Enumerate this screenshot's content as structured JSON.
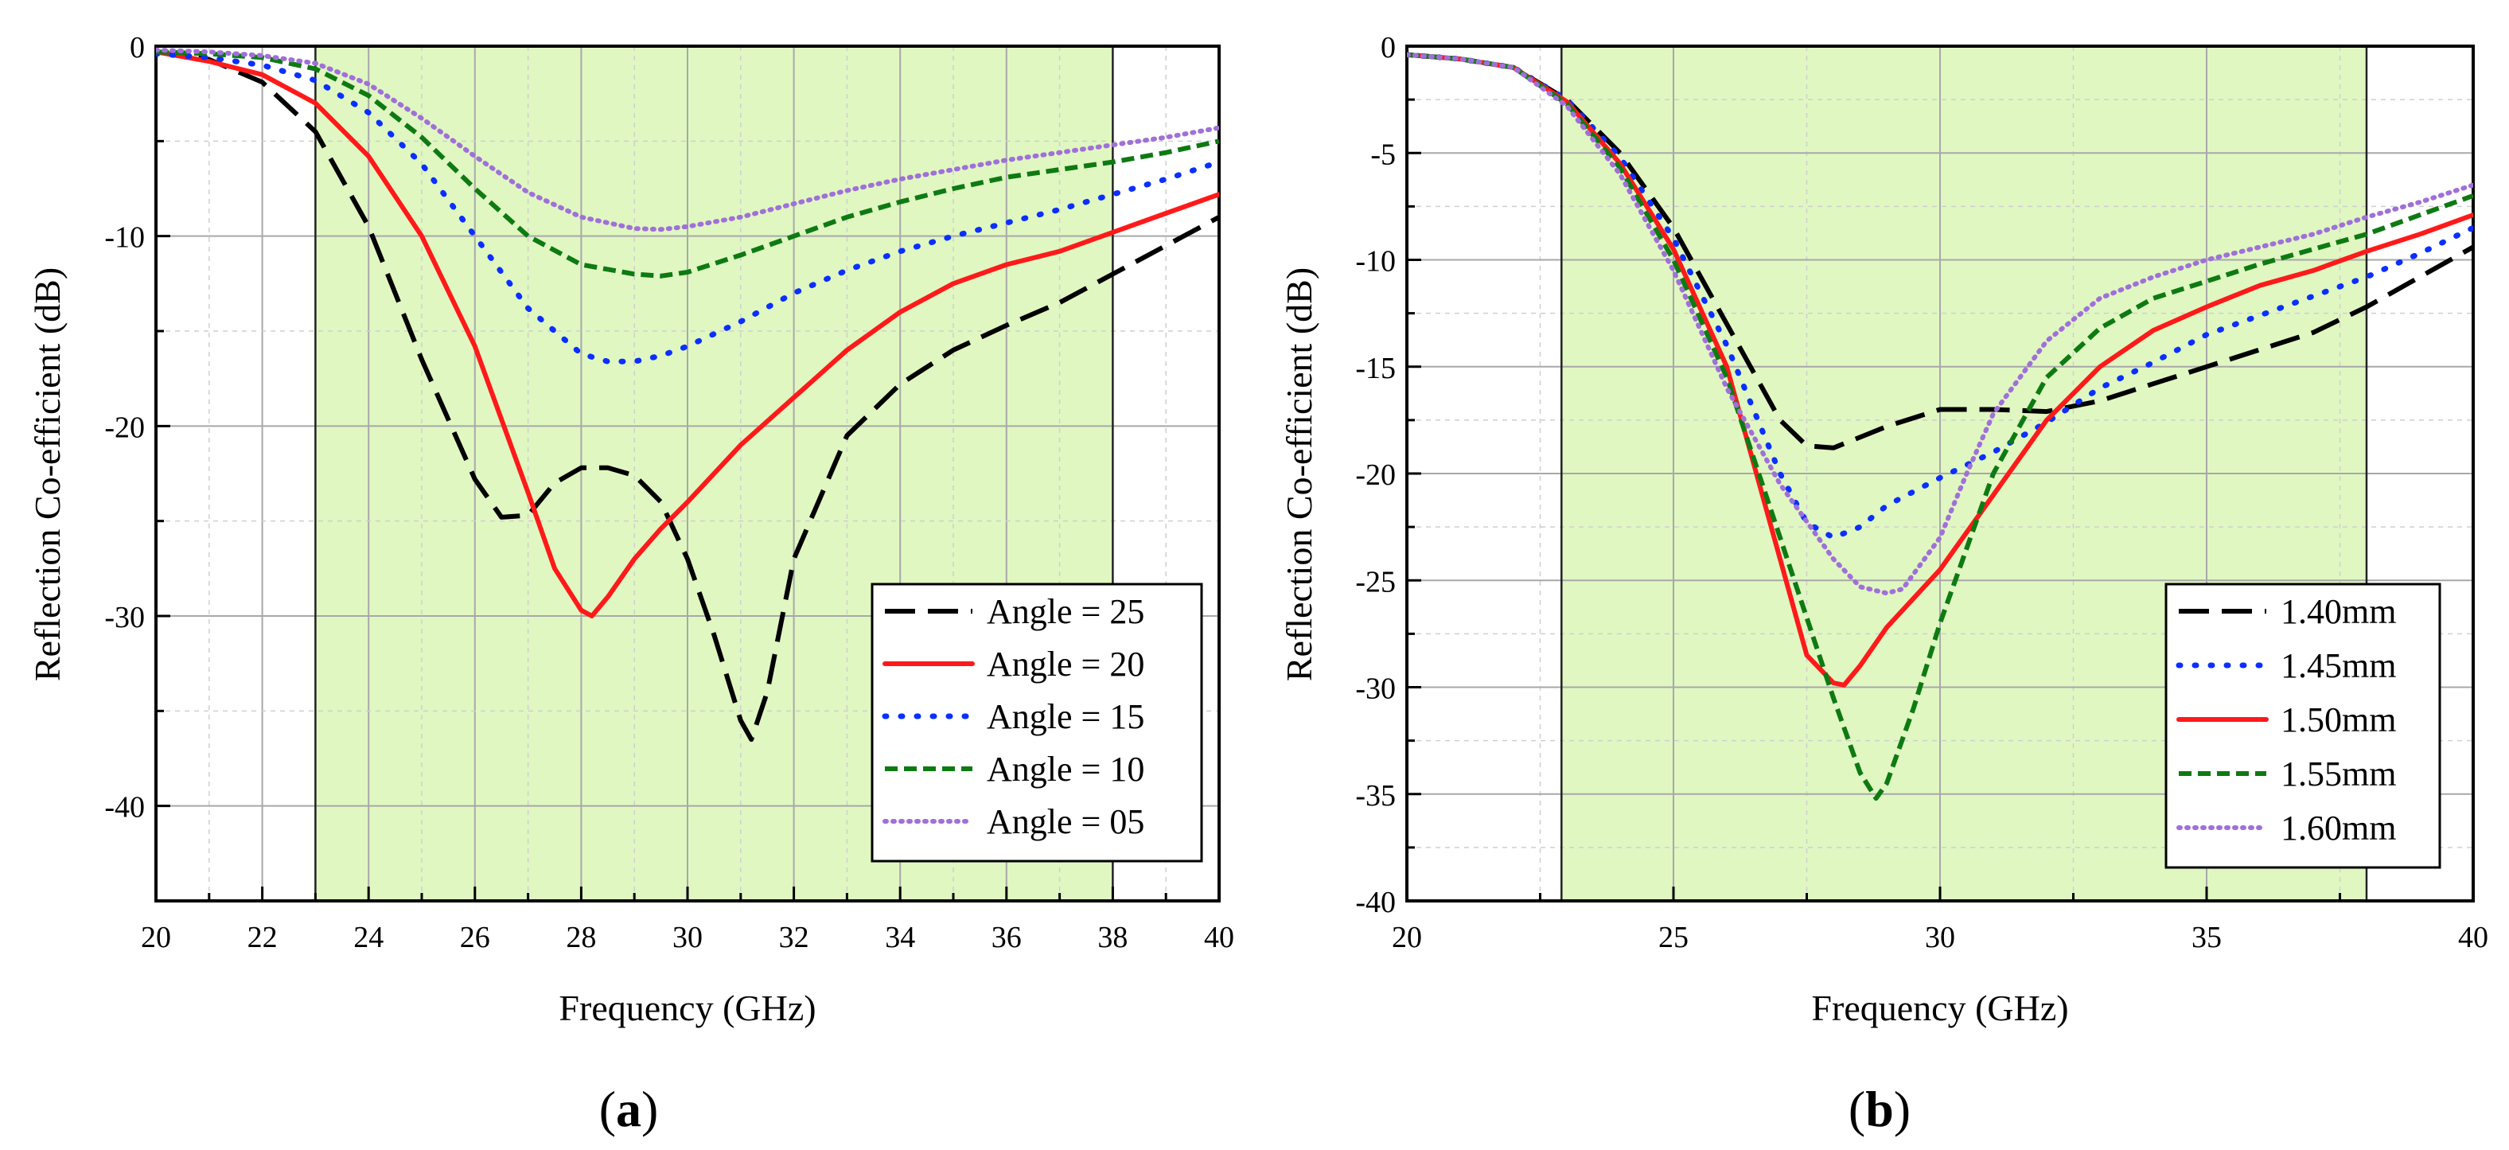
{
  "chart_data": [
    {
      "type": "line",
      "id": "a",
      "panel_label": "(a)",
      "panel_letter": "a",
      "xlabel": "Frequency (GHz)",
      "ylabel": "Reflection Co-efficient (dB)",
      "xlim": [
        20,
        40
      ],
      "ylim": [
        -45,
        0
      ],
      "xticks": [
        20,
        22,
        24,
        26,
        28,
        30,
        32,
        34,
        36,
        38,
        40
      ],
      "yticks": [
        0,
        -10,
        -20,
        -30,
        -40
      ],
      "shaded_band": [
        23,
        38
      ],
      "shade_color": "#e0f7c2",
      "grid": true,
      "legend_position": "bottom-right",
      "series": [
        {
          "name": "Angle = 25",
          "color": "#000000",
          "style": "dash",
          "x": [
            20,
            21,
            22,
            23,
            24,
            25,
            26,
            26.5,
            27,
            27.5,
            28,
            28.5,
            29,
            29.5,
            30,
            30.5,
            31,
            31.2,
            31.5,
            32,
            33,
            34,
            35,
            36,
            37,
            38,
            39,
            40
          ],
          "y": [
            -0.3,
            -0.7,
            -1.9,
            -4.5,
            -9.5,
            -16.5,
            -22.8,
            -24.8,
            -24.7,
            -23,
            -22.2,
            -22.2,
            -22.6,
            -24,
            -27,
            -31,
            -35.5,
            -36.5,
            -34,
            -27,
            -20.5,
            -17.8,
            -16,
            -14.7,
            -13.5,
            -12,
            -10.5,
            -9
          ]
        },
        {
          "name": "Angle = 20",
          "color": "#ff1a1a",
          "style": "solid",
          "x": [
            20,
            21,
            22,
            23,
            24,
            25,
            26,
            27,
            27.5,
            28,
            28.2,
            28.5,
            29,
            29.5,
            30,
            31,
            32,
            33,
            34,
            35,
            36,
            37,
            38,
            39,
            40
          ],
          "y": [
            -0.3,
            -0.8,
            -1.5,
            -3,
            -5.8,
            -10,
            -15.8,
            -23.5,
            -27.5,
            -29.7,
            -30,
            -29,
            -27,
            -25.4,
            -24,
            -21,
            -18.5,
            -16,
            -14,
            -12.5,
            -11.5,
            -10.8,
            -9.8,
            -8.8,
            -7.8
          ]
        },
        {
          "name": "Angle = 15",
          "color": "#0a2fff",
          "style": "dot",
          "x": [
            20,
            21,
            22,
            23,
            24,
            25,
            26,
            27,
            28,
            28.5,
            29,
            29.5,
            30,
            31,
            32,
            33,
            34,
            35,
            36,
            37,
            38,
            39,
            40
          ],
          "y": [
            -0.4,
            -0.6,
            -1,
            -1.8,
            -3.5,
            -6.2,
            -10,
            -13.8,
            -16.2,
            -16.6,
            -16.6,
            -16.3,
            -15.8,
            -14.5,
            -13,
            -11.8,
            -10.8,
            -10,
            -9.3,
            -8.6,
            -7.8,
            -7,
            -6.1
          ]
        },
        {
          "name": "Angle = 10",
          "color": "#0e7a12",
          "style": "shortdash",
          "x": [
            20,
            21,
            22,
            23,
            24,
            25,
            26,
            27,
            28,
            29,
            29.5,
            30,
            31,
            32,
            33,
            34,
            35,
            36,
            37,
            38,
            39,
            40
          ],
          "y": [
            -0.3,
            -0.4,
            -0.6,
            -1.2,
            -2.6,
            -4.8,
            -7.5,
            -10,
            -11.5,
            -12,
            -12.1,
            -11.9,
            -11,
            -10,
            -9,
            -8.2,
            -7.5,
            -6.9,
            -6.5,
            -6.1,
            -5.6,
            -5
          ]
        },
        {
          "name": "Angle = 05",
          "color": "#a070d8",
          "style": "finedot",
          "x": [
            20,
            21,
            22,
            23,
            24,
            25,
            26,
            27,
            28,
            29,
            29.5,
            30,
            31,
            32,
            33,
            34,
            35,
            36,
            37,
            38,
            39,
            40
          ],
          "y": [
            -0.2,
            -0.3,
            -0.5,
            -0.9,
            -2,
            -3.8,
            -5.8,
            -7.7,
            -9,
            -9.6,
            -9.65,
            -9.5,
            -9,
            -8.3,
            -7.6,
            -7,
            -6.5,
            -6,
            -5.6,
            -5.2,
            -4.8,
            -4.3
          ]
        }
      ]
    },
    {
      "type": "line",
      "id": "b",
      "panel_label": "(b)",
      "panel_letter": "b",
      "xlabel": "Frequency (GHz)",
      "ylabel": "Reflection Co-efficient (dB)",
      "xlim": [
        20,
        40
      ],
      "ylim": [
        -40,
        0
      ],
      "xticks": [
        20,
        25,
        30,
        35,
        40
      ],
      "yticks": [
        0,
        -5,
        -10,
        -15,
        -20,
        -25,
        -30,
        -35,
        -40
      ],
      "shaded_band": [
        22.9,
        38
      ],
      "shade_color": "#e0f7c2",
      "grid": true,
      "legend_position": "bottom-right",
      "series": [
        {
          "name": "1.40mm",
          "color": "#000000",
          "style": "dash",
          "x": [
            20,
            21,
            22,
            23,
            24,
            25,
            26,
            27,
            27.5,
            28,
            29,
            30,
            31,
            32,
            33,
            34,
            35,
            36,
            37,
            38,
            39,
            40
          ],
          "y": [
            -0.4,
            -0.6,
            -1,
            -2.5,
            -5,
            -8.5,
            -13,
            -17.5,
            -18.7,
            -18.8,
            -17.8,
            -17,
            -17,
            -17.1,
            -16.6,
            -15.8,
            -15,
            -14.2,
            -13.4,
            -12.2,
            -10.8,
            -9.4
          ]
        },
        {
          "name": "1.45mm",
          "color": "#0a2fff",
          "style": "dot",
          "x": [
            20,
            21,
            22,
            23,
            24,
            25,
            26,
            27,
            27.5,
            28,
            28.5,
            29,
            30,
            31,
            32,
            33,
            34,
            35,
            36,
            37,
            38,
            39,
            40
          ],
          "y": [
            -0.4,
            -0.6,
            -1,
            -2.5,
            -5.2,
            -9,
            -14,
            -20,
            -22.3,
            -23,
            -22.5,
            -21.5,
            -20.2,
            -19,
            -17.6,
            -16,
            -14.8,
            -13.5,
            -12.6,
            -11.7,
            -10.8,
            -9.7,
            -8.5
          ]
        },
        {
          "name": "1.50mm",
          "color": "#ff1a1a",
          "style": "solid",
          "x": [
            20,
            21,
            22,
            23,
            24,
            25,
            26,
            27,
            27.5,
            28,
            28.2,
            28.5,
            29,
            30,
            31,
            32,
            33,
            34,
            35,
            36,
            37,
            38,
            39,
            40
          ],
          "y": [
            -0.4,
            -0.6,
            -1,
            -2.6,
            -5.5,
            -9.5,
            -15,
            -24,
            -28.5,
            -29.8,
            -29.9,
            -29,
            -27.2,
            -24.5,
            -21,
            -17.5,
            -15,
            -13.3,
            -12.2,
            -11.2,
            -10.5,
            -9.6,
            -8.8,
            -7.9
          ]
        },
        {
          "name": "1.55mm",
          "color": "#0e7a12",
          "style": "shortdash",
          "x": [
            20,
            21,
            22,
            23,
            24,
            25,
            26,
            27,
            28,
            28.5,
            28.8,
            29,
            29.5,
            30,
            31,
            32,
            33,
            34,
            35,
            36,
            37,
            38,
            39,
            40
          ],
          "y": [
            -0.4,
            -0.6,
            -1,
            -2.7,
            -5.7,
            -10,
            -15.5,
            -23,
            -30.5,
            -34,
            -35.2,
            -34.5,
            -31,
            -27,
            -20,
            -15.5,
            -13.2,
            -11.8,
            -11,
            -10.2,
            -9.5,
            -8.8,
            -7.9,
            -7
          ]
        },
        {
          "name": "1.60mm",
          "color": "#a070d8",
          "style": "finedot",
          "x": [
            20,
            21,
            22,
            23,
            24,
            25,
            26,
            27,
            28,
            28.5,
            29,
            29.3,
            30,
            30.5,
            31,
            32,
            33,
            34,
            35,
            36,
            37,
            38,
            39,
            40
          ],
          "y": [
            -0.4,
            -0.6,
            -1,
            -2.8,
            -6,
            -10.5,
            -16,
            -20.5,
            -24,
            -25.3,
            -25.6,
            -25.4,
            -23,
            -20,
            -17.2,
            -13.8,
            -11.8,
            -10.8,
            -10,
            -9.4,
            -8.8,
            -8,
            -7.3,
            -6.5
          ]
        }
      ]
    }
  ]
}
